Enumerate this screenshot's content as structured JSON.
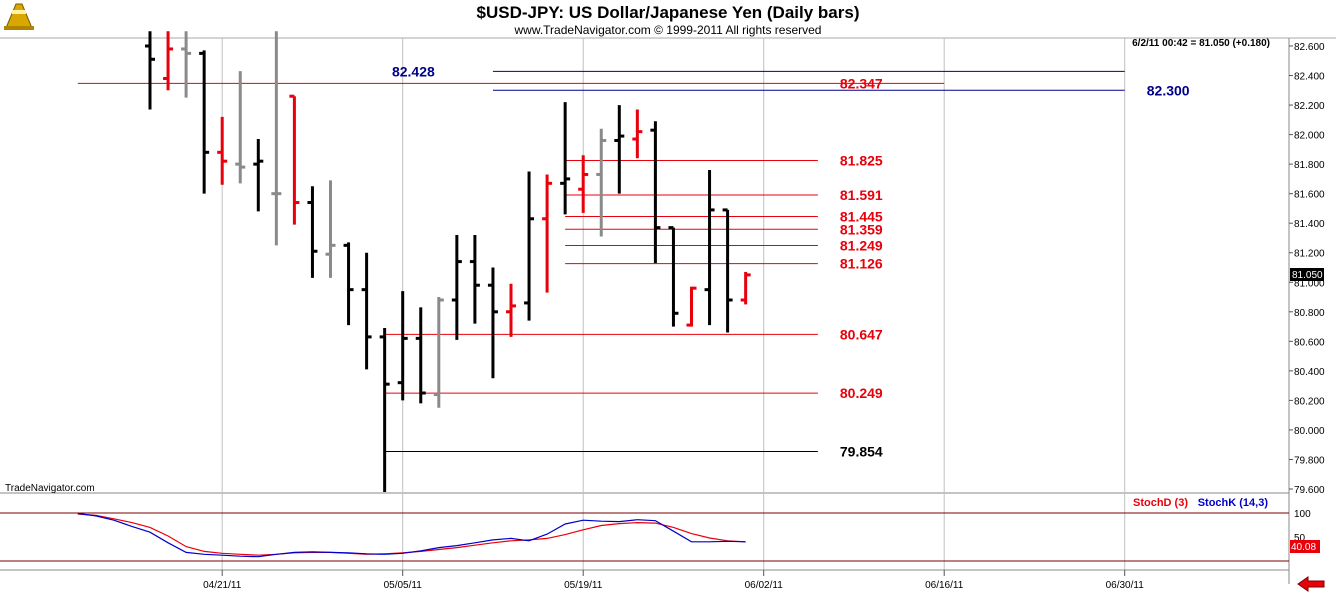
{
  "title": "$USD-JPY:  US Dollar/Japanese Yen  (Daily bars)",
  "copyright": "www.TradeNavigator.com © 1999-2011 All rights reserved",
  "watermark": "TradeNavigator.com",
  "last_quote": "6/2/11 00:42 = 81.050 (+0.180)",
  "last_price_tag": "81.050",
  "colors": {
    "up": "#e8000b",
    "down": "#000000",
    "neutral": "#8a8a8a",
    "blue": "#00008b",
    "red": "#e8000b"
  },
  "chart_data": [
    {
      "type": "bar",
      "subtype": "ohlc",
      "title": "$USD-JPY:  US Dollar/Japanese Yen  (Daily bars)",
      "ylim": [
        79.55,
        82.7
      ],
      "y_ticks": [
        "82.600",
        "82.400",
        "82.200",
        "82.000",
        "81.800",
        "81.600",
        "81.400",
        "81.200",
        "81.000",
        "80.800",
        "80.600",
        "80.400",
        "80.200",
        "80.000",
        "79.800",
        "79.600"
      ],
      "x_ticks": [
        "04/21/11",
        "05/05/11",
        "05/19/11",
        "06/02/11",
        "06/16/11",
        "06/30/11"
      ],
      "bars": [
        {
          "date": "04/15/11",
          "o": 82.6,
          "h": 82.7,
          "l": 82.17,
          "c": 82.51,
          "color": "down"
        },
        {
          "date": "04/18/11",
          "o": 82.38,
          "h": 82.7,
          "l": 82.3,
          "c": 82.58,
          "color": "up"
        },
        {
          "date": "04/19/11",
          "o": 82.58,
          "h": 82.7,
          "l": 82.25,
          "c": 82.55,
          "color": "neutral"
        },
        {
          "date": "04/20/11",
          "o": 82.55,
          "h": 82.57,
          "l": 81.6,
          "c": 81.88,
          "color": "down"
        },
        {
          "date": "04/21/11",
          "o": 81.88,
          "h": 82.12,
          "l": 81.66,
          "c": 81.82,
          "color": "up"
        },
        {
          "date": "04/22/11",
          "o": 81.8,
          "h": 82.43,
          "l": 81.67,
          "c": 81.78,
          "color": "neutral"
        },
        {
          "date": "04/25/11",
          "o": 81.8,
          "h": 81.97,
          "l": 81.48,
          "c": 81.82,
          "color": "down"
        },
        {
          "date": "04/26/11",
          "o": 81.6,
          "h": 82.7,
          "l": 81.25,
          "c": 81.6,
          "color": "neutral"
        },
        {
          "date": "04/27/11",
          "o": 82.26,
          "h": 82.26,
          "l": 81.39,
          "c": 81.54,
          "color": "up"
        },
        {
          "date": "04/28/11",
          "o": 81.54,
          "h": 81.65,
          "l": 81.03,
          "c": 81.21,
          "color": "down"
        },
        {
          "date": "04/29/11",
          "o": 81.19,
          "h": 81.69,
          "l": 81.03,
          "c": 81.25,
          "color": "neutral"
        },
        {
          "date": "05/02/11",
          "o": 81.25,
          "h": 81.27,
          "l": 80.71,
          "c": 80.95,
          "color": "down"
        },
        {
          "date": "05/03/11",
          "o": 80.95,
          "h": 81.2,
          "l": 80.41,
          "c": 80.63,
          "color": "down"
        },
        {
          "date": "05/04/11",
          "o": 80.63,
          "h": 80.69,
          "l": 79.58,
          "c": 80.31,
          "color": "down"
        },
        {
          "date": "05/05/11",
          "o": 80.32,
          "h": 80.94,
          "l": 80.2,
          "c": 80.62,
          "color": "down"
        },
        {
          "date": "05/06/11",
          "o": 80.62,
          "h": 80.83,
          "l": 80.18,
          "c": 80.25,
          "color": "down"
        },
        {
          "date": "05/09/11",
          "o": 80.24,
          "h": 80.9,
          "l": 80.15,
          "c": 80.88,
          "color": "neutral"
        },
        {
          "date": "05/10/11",
          "o": 80.88,
          "h": 81.32,
          "l": 80.61,
          "c": 81.14,
          "color": "down"
        },
        {
          "date": "05/11/11",
          "o": 81.14,
          "h": 81.32,
          "l": 80.72,
          "c": 80.98,
          "color": "down"
        },
        {
          "date": "05/12/11",
          "o": 80.98,
          "h": 81.1,
          "l": 80.35,
          "c": 80.8,
          "color": "down"
        },
        {
          "date": "05/13/11",
          "o": 80.8,
          "h": 80.99,
          "l": 80.63,
          "c": 80.84,
          "color": "up"
        },
        {
          "date": "05/16/11",
          "o": 80.86,
          "h": 81.75,
          "l": 80.74,
          "c": 81.43,
          "color": "down"
        },
        {
          "date": "05/17/11",
          "o": 81.43,
          "h": 81.73,
          "l": 80.93,
          "c": 81.67,
          "color": "up"
        },
        {
          "date": "05/18/11",
          "o": 81.67,
          "h": 82.22,
          "l": 81.46,
          "c": 81.7,
          "color": "down"
        },
        {
          "date": "05/19/11",
          "o": 81.63,
          "h": 81.86,
          "l": 81.47,
          "c": 81.73,
          "color": "up"
        },
        {
          "date": "05/20/11",
          "o": 81.73,
          "h": 82.04,
          "l": 81.31,
          "c": 81.96,
          "color": "neutral"
        },
        {
          "date": "05/23/11",
          "o": 81.96,
          "h": 82.2,
          "l": 81.6,
          "c": 81.99,
          "color": "down"
        },
        {
          "date": "05/24/11",
          "o": 81.97,
          "h": 82.17,
          "l": 81.84,
          "c": 82.02,
          "color": "up"
        },
        {
          "date": "05/25/11",
          "o": 82.03,
          "h": 82.09,
          "l": 81.13,
          "c": 81.37,
          "color": "down"
        },
        {
          "date": "05/26/11",
          "o": 81.37,
          "h": 81.37,
          "l": 80.7,
          "c": 80.79,
          "color": "down"
        },
        {
          "date": "05/27/11",
          "o": 80.71,
          "h": 80.97,
          "l": 80.7,
          "c": 80.96,
          "color": "up"
        },
        {
          "date": "05/30/11",
          "o": 80.95,
          "h": 81.76,
          "l": 80.71,
          "c": 81.49,
          "color": "down"
        },
        {
          "date": "05/31/11",
          "o": 81.49,
          "h": 81.49,
          "l": 80.66,
          "c": 80.88,
          "color": "down"
        },
        {
          "date": "06/01/11",
          "o": 80.88,
          "h": 81.07,
          "l": 80.85,
          "c": 81.05,
          "color": "up"
        }
      ],
      "levels": [
        {
          "value": 82.428,
          "label": "82.428",
          "color": "blue",
          "from": "05/12/11",
          "to": "06/30/11",
          "label_side": "left",
          "label_date": "05/09/11"
        },
        {
          "value": 82.347,
          "label": "82.347",
          "color": "red",
          "from": "04/11/11",
          "to": "06/16/11",
          "label_side": "right",
          "label_date": "06/08/11"
        },
        {
          "value": 82.3,
          "label": "82.300",
          "color": "blue",
          "from": "05/12/11",
          "to": "06/30/11",
          "label_side": "right",
          "label_date": "07/01/11"
        },
        {
          "value": 81.825,
          "label": "81.825",
          "color": "red",
          "from": "05/18/11",
          "to": "06/07/11",
          "label_side": "right",
          "label_date": "06/08/11"
        },
        {
          "value": 81.591,
          "label": "81.591",
          "color": "red",
          "from": "05/18/11",
          "to": "06/07/11",
          "label_side": "right",
          "label_date": "06/08/11"
        },
        {
          "value": 81.445,
          "label": "81.445",
          "color": "red",
          "from": "05/18/11",
          "to": "06/07/11",
          "label_side": "right",
          "label_date": "06/08/11"
        },
        {
          "value": 81.359,
          "label": "81.359",
          "color": "red",
          "from": "05/18/11",
          "to": "06/07/11",
          "label_side": "right",
          "label_date": "06/08/11"
        },
        {
          "value": 81.249,
          "label": "81.249",
          "color": "red",
          "from": "05/18/11",
          "to": "06/07/11",
          "label_side": "right",
          "label_date": "06/08/11"
        },
        {
          "value": 81.126,
          "label": "81.126",
          "color": "red",
          "from": "05/18/11",
          "to": "06/07/11",
          "label_side": "right",
          "label_date": "06/08/11"
        },
        {
          "value": 80.647,
          "label": "80.647",
          "color": "red",
          "from": "05/04/11",
          "to": "06/07/11",
          "label_side": "right",
          "label_date": "06/08/11"
        },
        {
          "value": 80.249,
          "label": "80.249",
          "color": "red",
          "from": "05/04/11",
          "to": "06/07/11",
          "label_side": "right",
          "label_date": "06/08/11"
        },
        {
          "value": 79.854,
          "label": "79.854",
          "color": "black",
          "from": "05/04/11",
          "to": "06/07/11",
          "label_side": "right",
          "label_date": "06/08/11"
        }
      ],
      "grid": "vertical"
    },
    {
      "type": "line",
      "ylim": [
        0,
        100
      ],
      "y_ticks": [
        "100",
        "50"
      ],
      "last_value_tag": "40.08",
      "x": [
        "04/11/11",
        "04/12/11",
        "04/13/11",
        "04/14/11",
        "04/15/11",
        "04/18/11",
        "04/19/11",
        "04/20/11",
        "04/21/11",
        "04/22/11",
        "04/25/11",
        "04/26/11",
        "04/27/11",
        "04/28/11",
        "04/29/11",
        "05/02/11",
        "05/03/11",
        "05/04/11",
        "05/05/11",
        "05/06/11",
        "05/09/11",
        "05/10/11",
        "05/11/11",
        "05/12/11",
        "05/13/11",
        "05/16/11",
        "05/17/11",
        "05/18/11",
        "05/19/11",
        "05/20/11",
        "05/23/11",
        "05/24/11",
        "05/25/11",
        "05/26/11",
        "05/27/11",
        "05/30/11",
        "05/31/11",
        "06/01/11"
      ],
      "series": [
        {
          "name": "StochD (3)",
          "color": "red",
          "values": [
            98,
            95,
            88,
            80,
            70,
            52,
            30,
            20,
            16,
            14,
            12,
            14,
            17,
            18,
            18,
            16,
            14,
            15,
            17,
            20,
            24,
            28,
            33,
            38,
            42,
            44,
            47,
            55,
            65,
            74,
            78,
            80,
            79,
            70,
            57,
            48,
            42,
            40
          ]
        },
        {
          "name": "StochK (14,3)",
          "color": "blue",
          "values": [
            99,
            94,
            85,
            72,
            60,
            38,
            18,
            14,
            12,
            10,
            9,
            14,
            18,
            19,
            18,
            17,
            15,
            14,
            16,
            21,
            28,
            32,
            38,
            44,
            47,
            42,
            56,
            77,
            85,
            83,
            82,
            86,
            84,
            62,
            40,
            40,
            41,
            40
          ]
        }
      ]
    }
  ]
}
